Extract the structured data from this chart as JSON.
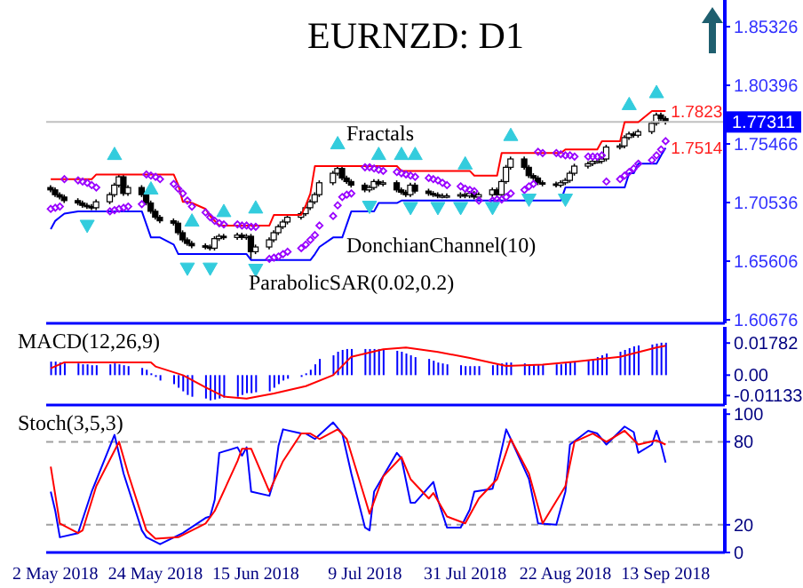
{
  "chart_data": [
    {
      "type": "candlestick",
      "title": "EURNZD: D1",
      "tick_labels": "y",
      "x": [
        "2018-05-01",
        "2018-05-02",
        "2018-05-03",
        "2018-05-04",
        "2018-05-07",
        "2018-05-08",
        "2018-05-09",
        "2018-05-10",
        "2018-05-11",
        "2018-05-14",
        "2018-05-15",
        "2018-05-16",
        "2018-05-17",
        "2018-05-18",
        "2018-05-21",
        "2018-05-22",
        "2018-05-23",
        "2018-05-24",
        "2018-05-25",
        "2018-05-28",
        "2018-05-29",
        "2018-05-30",
        "2018-05-31",
        "2018-06-01",
        "2018-06-04",
        "2018-06-05",
        "2018-06-06",
        "2018-06-07",
        "2018-06-08",
        "2018-06-11",
        "2018-06-12",
        "2018-06-13",
        "2018-06-14",
        "2018-06-15",
        "2018-06-18",
        "2018-06-19",
        "2018-06-20",
        "2018-06-21",
        "2018-06-22",
        "2018-06-25",
        "2018-06-26",
        "2018-06-27",
        "2018-06-28",
        "2018-06-29",
        "2018-07-02",
        "2018-07-03",
        "2018-07-04",
        "2018-07-05",
        "2018-07-06",
        "2018-07-09",
        "2018-07-10",
        "2018-07-11",
        "2018-07-12",
        "2018-07-13",
        "2018-07-16",
        "2018-07-17",
        "2018-07-18",
        "2018-07-19",
        "2018-07-20",
        "2018-07-23",
        "2018-07-24",
        "2018-07-25",
        "2018-07-26",
        "2018-07-27",
        "2018-07-30",
        "2018-07-31",
        "2018-08-01",
        "2018-08-02",
        "2018-08-03",
        "2018-08-06",
        "2018-08-07",
        "2018-08-08",
        "2018-08-09",
        "2018-08-10",
        "2018-08-13",
        "2018-08-14",
        "2018-08-15",
        "2018-08-16",
        "2018-08-17",
        "2018-08-20",
        "2018-08-21",
        "2018-08-22",
        "2018-08-23",
        "2018-08-24",
        "2018-08-27",
        "2018-08-28",
        "2018-08-29",
        "2018-08-30",
        "2018-08-31",
        "2018-09-03",
        "2018-09-04",
        "2018-09-05",
        "2018-09-06",
        "2018-09-07",
        "2018-09-10",
        "2018-09-11",
        "2018-09-12",
        "2018-09-13"
      ],
      "ohlc": [
        [
          1.718,
          1.72,
          1.714,
          1.716
        ],
        [
          1.716,
          1.718,
          1.71,
          1.712
        ],
        [
          1.712,
          1.714,
          1.708,
          1.71
        ],
        [
          1.71,
          1.712,
          1.705,
          1.707
        ],
        [
          1.707,
          1.709,
          1.703,
          1.705
        ],
        [
          1.705,
          1.707,
          1.701,
          1.703
        ],
        [
          1.703,
          1.705,
          1.7,
          1.702
        ],
        [
          1.702,
          1.704,
          1.699,
          1.701
        ],
        [
          1.701,
          1.708,
          1.699,
          1.706
        ],
        [
          1.706,
          1.714,
          1.704,
          1.712
        ],
        [
          1.712,
          1.722,
          1.71,
          1.72
        ],
        [
          1.72,
          1.729,
          1.718,
          1.727
        ],
        [
          1.727,
          1.729,
          1.711,
          1.713
        ],
        [
          1.713,
          1.72,
          1.711,
          1.718
        ],
        [
          1.718,
          1.72,
          1.71,
          1.712
        ],
        [
          1.712,
          1.714,
          1.703,
          1.705
        ],
        [
          1.705,
          1.707,
          1.696,
          1.698
        ],
        [
          1.698,
          1.7,
          1.691,
          1.693
        ],
        [
          1.693,
          1.695,
          1.688,
          1.69
        ],
        [
          1.69,
          1.692,
          1.686,
          1.688
        ],
        [
          1.688,
          1.69,
          1.678,
          1.68
        ],
        [
          1.68,
          1.682,
          1.672,
          1.674
        ],
        [
          1.674,
          1.676,
          1.669,
          1.671
        ],
        [
          1.671,
          1.673,
          1.667,
          1.669
        ],
        [
          1.669,
          1.671,
          1.666,
          1.668
        ],
        [
          1.668,
          1.67,
          1.665,
          1.667
        ],
        [
          1.667,
          1.677,
          1.665,
          1.675
        ],
        [
          1.675,
          1.679,
          1.673,
          1.677
        ],
        [
          1.677,
          1.679,
          1.674,
          1.676
        ],
        [
          1.676,
          1.68,
          1.674,
          1.678
        ],
        [
          1.678,
          1.68,
          1.674,
          1.676
        ],
        [
          1.676,
          1.679,
          1.674,
          1.677
        ],
        [
          1.677,
          1.679,
          1.657,
          1.664
        ],
        [
          1.664,
          1.67,
          1.662,
          1.668
        ],
        [
          1.668,
          1.676,
          1.666,
          1.674
        ],
        [
          1.674,
          1.682,
          1.672,
          1.68
        ],
        [
          1.68,
          1.687,
          1.678,
          1.685
        ],
        [
          1.685,
          1.691,
          1.683,
          1.689
        ],
        [
          1.689,
          1.695,
          1.687,
          1.693
        ],
        [
          1.693,
          1.698,
          1.691,
          1.696
        ],
        [
          1.696,
          1.703,
          1.694,
          1.701
        ],
        [
          1.701,
          1.708,
          1.699,
          1.706
        ],
        [
          1.706,
          1.714,
          1.704,
          1.712
        ],
        [
          1.712,
          1.724,
          1.71,
          1.722
        ],
        [
          1.722,
          1.732,
          1.72,
          1.73
        ],
        [
          1.73,
          1.736,
          1.728,
          1.734
        ],
        [
          1.734,
          1.736,
          1.724,
          1.726
        ],
        [
          1.726,
          1.728,
          1.721,
          1.723
        ],
        [
          1.723,
          1.725,
          1.718,
          1.72
        ],
        [
          1.72,
          1.722,
          1.714,
          1.716
        ],
        [
          1.716,
          1.72,
          1.714,
          1.718
        ],
        [
          1.718,
          1.725,
          1.716,
          1.723
        ],
        [
          1.723,
          1.725,
          1.719,
          1.721
        ],
        [
          1.721,
          1.724,
          1.719,
          1.722
        ],
        [
          1.722,
          1.724,
          1.714,
          1.716
        ],
        [
          1.716,
          1.718,
          1.712,
          1.714
        ],
        [
          1.714,
          1.716,
          1.71,
          1.712
        ],
        [
          1.712,
          1.722,
          1.71,
          1.72
        ],
        [
          1.72,
          1.722,
          1.713,
          1.715
        ],
        [
          1.715,
          1.717,
          1.711,
          1.713
        ],
        [
          1.713,
          1.715,
          1.71,
          1.712
        ],
        [
          1.712,
          1.714,
          1.709,
          1.711
        ],
        [
          1.711,
          1.713,
          1.709,
          1.711
        ],
        [
          1.711,
          1.713,
          1.709,
          1.711
        ],
        [
          1.711,
          1.714,
          1.709,
          1.712
        ],
        [
          1.712,
          1.714,
          1.709,
          1.711
        ],
        [
          1.711,
          1.715,
          1.709,
          1.713
        ],
        [
          1.713,
          1.715,
          1.708,
          1.71
        ],
        [
          1.71,
          1.714,
          1.708,
          1.712
        ],
        [
          1.712,
          1.718,
          1.71,
          1.716
        ],
        [
          1.716,
          1.718,
          1.71,
          1.712
        ],
        [
          1.712,
          1.725,
          1.71,
          1.723
        ],
        [
          1.723,
          1.737,
          1.721,
          1.735
        ],
        [
          1.735,
          1.744,
          1.733,
          1.742
        ],
        [
          1.742,
          1.744,
          1.733,
          1.735
        ],
        [
          1.735,
          1.737,
          1.726,
          1.728
        ],
        [
          1.728,
          1.73,
          1.724,
          1.726
        ],
        [
          1.726,
          1.728,
          1.72,
          1.722
        ],
        [
          1.722,
          1.724,
          1.719,
          1.721
        ],
        [
          1.721,
          1.723,
          1.718,
          1.72
        ],
        [
          1.72,
          1.724,
          1.718,
          1.722
        ],
        [
          1.722,
          1.726,
          1.72,
          1.724
        ],
        [
          1.724,
          1.732,
          1.722,
          1.73
        ],
        [
          1.73,
          1.738,
          1.728,
          1.736
        ],
        [
          1.736,
          1.74,
          1.734,
          1.738
        ],
        [
          1.738,
          1.742,
          1.736,
          1.74
        ],
        [
          1.74,
          1.742,
          1.738,
          1.74
        ],
        [
          1.74,
          1.744,
          1.738,
          1.742
        ],
        [
          1.742,
          1.754,
          1.74,
          1.752
        ],
        [
          1.752,
          1.755,
          1.75,
          1.753
        ],
        [
          1.753,
          1.762,
          1.751,
          1.76
        ],
        [
          1.76,
          1.765,
          1.758,
          1.763
        ],
        [
          1.763,
          1.765,
          1.76,
          1.762
        ],
        [
          1.762,
          1.767,
          1.76,
          1.765
        ],
        [
          1.765,
          1.774,
          1.763,
          1.772
        ],
        [
          1.772,
          1.781,
          1.77,
          1.779
        ],
        [
          1.779,
          1.781,
          1.774,
          1.776
        ],
        [
          1.776,
          1.778,
          1.771,
          1.7731
        ]
      ],
      "series": [
        {
          "type": "line",
          "color": "#ff0000",
          "values": [
            1.725,
            1.725,
            1.725,
            1.725,
            1.725,
            1.725,
            1.725,
            1.725,
            1.729,
            1.729,
            1.729,
            1.729,
            1.729,
            1.729,
            1.729,
            1.729,
            1.729,
            1.729,
            1.729,
            1.729,
            1.72,
            1.706,
            1.706,
            1.705,
            1.7,
            1.694,
            1.69,
            1.686,
            1.686,
            1.686,
            1.686,
            1.686,
            1.686,
            1.686,
            1.686,
            1.695,
            1.695,
            1.695,
            1.695,
            1.695,
            1.703,
            1.713,
            1.736,
            1.736,
            1.736,
            1.736,
            1.736,
            1.736,
            1.736,
            1.736,
            1.736,
            1.736,
            1.736,
            1.736,
            1.736,
            1.732,
            1.732,
            1.732,
            1.732,
            1.732,
            1.732,
            1.732,
            1.732,
            1.732,
            1.732,
            1.732,
            1.732,
            1.728,
            1.728,
            1.728,
            1.728,
            1.747,
            1.747,
            1.747,
            1.747,
            1.747,
            1.747,
            1.747,
            1.747,
            1.747,
            1.747,
            1.75,
            1.75,
            1.75,
            1.75,
            1.75,
            1.75,
            1.757,
            1.757,
            1.757,
            1.773,
            1.773,
            1.773,
            1.773,
            1.7823,
            1.7823,
            1.7823,
            1.7823
          ]
        },
        {
          "type": "line",
          "color": "#0000ff",
          "values": [
            1.683,
            1.69,
            1.693,
            1.696,
            1.698,
            1.698,
            1.698,
            1.698,
            1.698,
            1.698,
            1.698,
            1.698,
            1.698,
            1.698,
            1.698,
            1.687,
            1.676,
            1.676,
            1.676,
            1.67,
            1.662,
            1.662,
            1.662,
            1.662,
            1.662,
            1.662,
            1.662,
            1.662,
            1.662,
            1.662,
            1.662,
            1.662,
            1.657,
            1.657,
            1.657,
            1.657,
            1.657,
            1.657,
            1.657,
            1.657,
            1.657,
            1.657,
            1.662,
            1.668,
            1.676,
            1.676,
            1.676,
            1.687,
            1.698,
            1.698,
            1.698,
            1.698,
            1.705,
            1.705,
            1.705,
            1.707,
            1.707,
            1.707,
            1.707,
            1.707,
            1.707,
            1.707,
            1.707,
            1.707,
            1.707,
            1.707,
            1.707,
            1.707,
            1.707,
            1.707,
            1.707,
            1.707,
            1.707,
            1.707,
            1.707,
            1.707,
            1.707,
            1.707,
            1.707,
            1.707,
            1.707,
            1.718,
            1.718,
            1.718,
            1.718,
            1.718,
            1.718,
            1.718,
            1.718,
            1.718,
            1.718,
            1.73,
            1.73,
            1.738,
            1.738,
            1.738,
            1.745,
            1.7514
          ]
        },
        {
          "type": "scatter",
          "color": "#9900ff",
          "marker": "diamond",
          "values": [
            1.7,
            1.701,
            1.702,
            1.725,
            1.724,
            1.723,
            1.722,
            1.72,
            1.718,
            1.698,
            1.699,
            1.7,
            1.701,
            1.702,
            1.704,
            1.729,
            1.728,
            1.727,
            1.725,
            1.721,
            1.717,
            1.713,
            1.707,
            1.702,
            1.697,
            1.693,
            1.69,
            1.688,
            1.687,
            1.687,
            1.686,
            1.686,
            1.685,
            1.685,
            1.658,
            1.659,
            1.66,
            1.662,
            1.664,
            1.667,
            1.67,
            1.674,
            1.678,
            1.686,
            1.694,
            1.703,
            1.71,
            1.712,
            1.713,
            1.735,
            1.735,
            1.734,
            1.733,
            1.732,
            1.731,
            1.73,
            1.729,
            1.728,
            1.727,
            1.726,
            1.725,
            1.724,
            1.722,
            1.72,
            1.719,
            1.717,
            1.716,
            1.715,
            1.707,
            1.707,
            1.708,
            1.708,
            1.71,
            1.713,
            1.716,
            1.719,
            1.721,
            1.748,
            1.747,
            1.747,
            1.746,
            1.745,
            1.745,
            1.744,
            1.744,
            1.744,
            1.744,
            1.745,
            1.723,
            1.725,
            1.728,
            1.731,
            1.734,
            1.738,
            1.741,
            1.745,
            1.75,
            1.757
          ]
        },
        {
          "type": "scatter",
          "color": "#33ccdd",
          "marker": "triangle",
          "x": [
            "2018-05-15",
            "2018-05-23",
            "2018-06-01",
            "2018-06-08",
            "2018-06-15",
            "2018-07-03",
            "2018-07-12",
            "2018-07-17",
            "2018-07-20",
            "2018-07-31",
            "2018-08-10",
            "2018-09-05",
            "2018-09-11"
          ],
          "values": [
            1.746,
            1.717,
            1.69,
            1.698,
            1.701,
            1.755,
            1.746,
            1.746,
            1.746,
            1.738,
            1.762,
            1.788,
            1.798
          ]
        },
        {
          "type": "scatter",
          "color": "#33ccdd",
          "marker": "triangle",
          "x": [
            "2018-05-09",
            "2018-05-31",
            "2018-06-05",
            "2018-06-15",
            "2018-07-10",
            "2018-07-19",
            "2018-07-25",
            "2018-07-30",
            "2018-08-06",
            "2018-08-14",
            "2018-08-22"
          ],
          "values": [
            1.686,
            1.65,
            1.65,
            1.649,
            1.702,
            1.701,
            1.701,
            1.701,
            1.701,
            1.708,
            1.708
          ]
        }
      ],
      "xlim": [
        "2018-04-30",
        "2018-09-26"
      ],
      "ylim": [
        1.6038,
        1.8757
      ],
      "yticks": [
        1.85326,
        1.80396,
        1.75466,
        1.70536,
        1.65606,
        1.60676
      ],
      "ref_lines": [
        {
          "axis": "y",
          "value": 1.77311,
          "label": "1.77311",
          "color": "#c0c0c0"
        }
      ],
      "annotations": [
        "Fractals",
        "DonchianChannel(10)",
        "ParabolicSAR(0.02,0.2)",
        {
          "text": "1.7823",
          "x": "2018-09-13",
          "y": 1.7823
        },
        {
          "text": "1.7514",
          "x": "2018-09-13",
          "y": 1.7514
        }
      ]
    },
    {
      "type": "bar",
      "title": "MACD(12,26,9)",
      "tick_labels": "y",
      "x": [
        "2018-05-01",
        "2018-05-02",
        "2018-05-03",
        "2018-05-04",
        "2018-05-07",
        "2018-05-08",
        "2018-05-09",
        "2018-05-10",
        "2018-05-11",
        "2018-05-14",
        "2018-05-15",
        "2018-05-16",
        "2018-05-17",
        "2018-05-18",
        "2018-05-21",
        "2018-05-22",
        "2018-05-23",
        "2018-05-24",
        "2018-05-25",
        "2018-05-28",
        "2018-05-29",
        "2018-05-30",
        "2018-05-31",
        "2018-06-01",
        "2018-06-04",
        "2018-06-05",
        "2018-06-06",
        "2018-06-07",
        "2018-06-08",
        "2018-06-11",
        "2018-06-12",
        "2018-06-13",
        "2018-06-14",
        "2018-06-15",
        "2018-06-18",
        "2018-06-19",
        "2018-06-20",
        "2018-06-21",
        "2018-06-22",
        "2018-06-25",
        "2018-06-26",
        "2018-06-27",
        "2018-06-28",
        "2018-06-29",
        "2018-07-02",
        "2018-07-03",
        "2018-07-04",
        "2018-07-05",
        "2018-07-06",
        "2018-07-09",
        "2018-07-10",
        "2018-07-11",
        "2018-07-12",
        "2018-07-13",
        "2018-07-16",
        "2018-07-17",
        "2018-07-18",
        "2018-07-19",
        "2018-07-20",
        "2018-07-23",
        "2018-07-24",
        "2018-07-25",
        "2018-07-26",
        "2018-07-27",
        "2018-07-30",
        "2018-07-31",
        "2018-08-01",
        "2018-08-02",
        "2018-08-03",
        "2018-08-06",
        "2018-08-07",
        "2018-08-08",
        "2018-08-09",
        "2018-08-10",
        "2018-08-13",
        "2018-08-14",
        "2018-08-15",
        "2018-08-16",
        "2018-08-17",
        "2018-08-20",
        "2018-08-21",
        "2018-08-22",
        "2018-08-23",
        "2018-08-24",
        "2018-08-27",
        "2018-08-28",
        "2018-08-29",
        "2018-08-30",
        "2018-08-31",
        "2018-09-03",
        "2018-09-04",
        "2018-09-05",
        "2018-09-06",
        "2018-09-07",
        "2018-09-10",
        "2018-09-11",
        "2018-09-12",
        "2018-09-13"
      ],
      "series": [
        {
          "color": "#0000ff",
          "values": [
            0.0075,
            0.0075,
            0.007,
            0.0065,
            0.0065,
            0.006,
            0.006,
            0.0055,
            0.0055,
            0.006,
            0.0065,
            0.006,
            0.0055,
            0.005,
            0.004,
            0.003,
            0.001,
            -0.001,
            -0.003,
            -0.005,
            -0.007,
            -0.009,
            -0.011,
            -0.012,
            -0.013,
            -0.014,
            -0.0135,
            -0.013,
            -0.0125,
            -0.012,
            -0.011,
            -0.01,
            -0.01,
            -0.0095,
            -0.009,
            -0.007,
            -0.005,
            -0.003,
            -0.002,
            -0.001,
            0.001,
            0.003,
            0.006,
            0.009,
            0.011,
            0.013,
            0.014,
            0.0145,
            0.0145,
            0.0145,
            0.0145,
            0.0145,
            0.0145,
            0.014,
            0.0135,
            0.013,
            0.012,
            0.011,
            0.01,
            0.009,
            0.008,
            0.007,
            0.0065,
            0.006,
            0.0055,
            0.005,
            0.005,
            0.005,
            0.005,
            0.0055,
            0.006,
            0.0065,
            0.007,
            0.007,
            0.0065,
            0.006,
            0.006,
            0.006,
            0.006,
            0.006,
            0.006,
            0.0065,
            0.007,
            0.0075,
            0.008,
            0.009,
            0.01,
            0.011,
            0.012,
            0.013,
            0.014,
            0.015,
            0.016,
            0.0165,
            0.017,
            0.0175,
            0.018,
            0.018
          ]
        },
        {
          "type": "line",
          "color": "#ff0000",
          "x": [
            "2018-05-01",
            "2018-05-04",
            "2018-05-23",
            "2018-05-24",
            "2018-05-30",
            "2018-06-04",
            "2018-06-08",
            "2018-06-13",
            "2018-06-19",
            "2018-06-26",
            "2018-07-02",
            "2018-07-06",
            "2018-07-13",
            "2018-07-18",
            "2018-07-25",
            "2018-08-01",
            "2018-08-09",
            "2018-08-17",
            "2018-08-24",
            "2018-09-03",
            "2018-09-11",
            "2018-09-13"
          ],
          "values": [
            0.0038,
            0.0071,
            0.0071,
            0.0048,
            0,
            -0.0068,
            -0.0119,
            -0.013,
            -0.0102,
            -0.0061,
            0,
            0.0102,
            0.0143,
            0.0153,
            0.0129,
            0.0095,
            0.0051,
            0.0058,
            0.0075,
            0.0102,
            0.0153,
            0.0163
          ]
        }
      ],
      "xlim": [
        "2018-04-30",
        "2018-09-26"
      ],
      "ylim": [
        -0.0166,
        0.0268
      ],
      "yticks": [
        0.01782,
        {
          "value": 0,
          "label": "0.00"
        },
        -0.01133
      ]
    },
    {
      "type": "line",
      "title": "Stoch(3,5,3)",
      "series": [
        {
          "color": "#0000ff",
          "x": [
            "2018-05-01",
            "2018-05-02",
            "2018-05-03",
            "2018-05-07",
            "2018-05-10",
            "2018-05-15",
            "2018-05-17",
            "2018-05-21",
            "2018-05-22",
            "2018-05-25",
            "2018-05-30",
            "2018-06-04",
            "2018-06-05",
            "2018-06-06",
            "2018-06-07",
            "2018-06-11",
            "2018-06-12",
            "2018-06-13",
            "2018-06-14",
            "2018-06-18",
            "2018-06-19",
            "2018-06-20",
            "2018-06-21",
            "2018-06-25",
            "2018-06-26",
            "2018-06-28",
            "2018-07-02",
            "2018-07-04",
            "2018-07-06",
            "2018-07-09",
            "2018-07-10",
            "2018-07-11",
            "2018-07-16",
            "2018-07-17",
            "2018-07-19",
            "2018-07-20",
            "2018-07-24",
            "2018-07-25",
            "2018-07-27",
            "2018-07-30",
            "2018-08-01",
            "2018-08-02",
            "2018-08-06",
            "2018-08-07",
            "2018-08-09",
            "2018-08-10",
            "2018-08-14",
            "2018-08-16",
            "2018-08-20",
            "2018-08-22",
            "2018-08-23",
            "2018-08-27",
            "2018-08-29",
            "2018-08-31",
            "2018-09-04",
            "2018-09-06",
            "2018-09-07",
            "2018-09-10",
            "2018-09-11",
            "2018-09-12",
            "2018-09-13"
          ],
          "values": [
            44,
            30,
            11,
            14,
            44,
            85,
            57,
            16,
            11,
            6,
            14,
            25,
            26,
            38,
            72,
            76,
            70,
            76,
            44,
            41,
            52,
            77,
            89,
            86,
            86,
            82,
            94,
            86,
            57,
            18,
            16,
            44,
            72,
            68,
            36,
            36,
            51,
            38,
            18,
            18,
            31,
            44,
            46,
            60,
            89,
            82,
            53,
            21,
            20,
            44,
            78,
            88,
            86,
            78,
            91,
            87,
            72,
            78,
            88,
            78,
            65
          ]
        },
        {
          "color": "#ff0000",
          "x": [
            "2018-05-01",
            "2018-05-03",
            "2018-05-07",
            "2018-05-08",
            "2018-05-11",
            "2018-05-16",
            "2018-05-18",
            "2018-05-22",
            "2018-05-24",
            "2018-05-29",
            "2018-06-04",
            "2018-06-06",
            "2018-06-11",
            "2018-06-12",
            "2018-06-14",
            "2018-06-18",
            "2018-06-21",
            "2018-06-25",
            "2018-06-27",
            "2018-06-29",
            "2018-07-03",
            "2018-07-05",
            "2018-07-09",
            "2018-07-10",
            "2018-07-13",
            "2018-07-17",
            "2018-07-19",
            "2018-07-23",
            "2018-07-24",
            "2018-07-27",
            "2018-07-31",
            "2018-08-03",
            "2018-08-07",
            "2018-08-10",
            "2018-08-14",
            "2018-08-17",
            "2018-08-22",
            "2018-08-24",
            "2018-08-28",
            "2018-08-31",
            "2018-09-04",
            "2018-09-07",
            "2018-09-11",
            "2018-09-13"
          ],
          "values": [
            62,
            21,
            14,
            16,
            48,
            80,
            57,
            16,
            10,
            11,
            21,
            30,
            66,
            75,
            75,
            44,
            66,
            86,
            86,
            82,
            89,
            82,
            39,
            28,
            55,
            69,
            53,
            39,
            43,
            26,
            21,
            39,
            53,
            82,
            57,
            21,
            48,
            80,
            86,
            80,
            88,
            78,
            81,
            78
          ]
        }
      ],
      "xlim": [
        "2018-04-30",
        "2018-09-26"
      ],
      "ylim": [
        0,
        104
      ],
      "yticks": [
        100,
        80,
        20,
        0
      ],
      "xticks": [
        {
          "value": "2018-05-02",
          "label": "2 May 2018"
        },
        {
          "value": "2018-05-24",
          "label": "24 May 2018"
        },
        {
          "value": "2018-06-15",
          "label": "15 Jun 2018"
        },
        {
          "value": "2018-07-09",
          "label": "9 Jul 2018"
        },
        {
          "value": "2018-07-31",
          "label": "31 Jul 2018"
        },
        {
          "value": "2018-08-22",
          "label": "22 Aug 2018"
        },
        {
          "value": "2018-09-13",
          "label": "13 Sep 2018"
        }
      ],
      "ref_lines": [
        {
          "axis": "y",
          "value": 80,
          "color": "#a0a0a0",
          "line_style": "dashed"
        },
        {
          "axis": "y",
          "value": 20,
          "color": "#a0a0a0",
          "line_style": "dashed"
        }
      ]
    }
  ]
}
